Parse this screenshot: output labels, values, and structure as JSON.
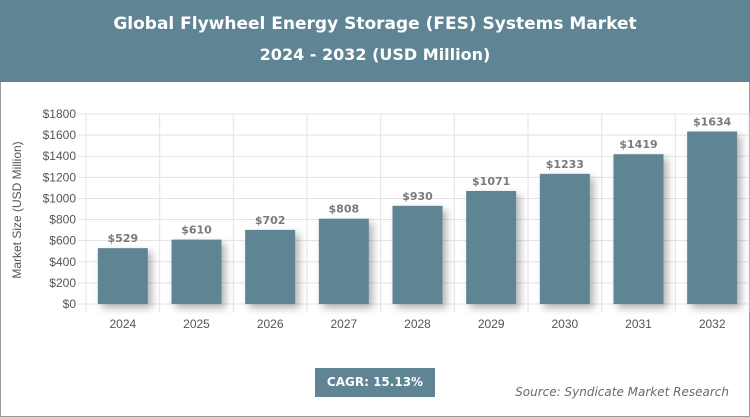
{
  "header": {
    "title": "Global Flywheel Energy Storage (FES) Systems Market",
    "subtitle": "2024 - 2032 (USD Million)"
  },
  "chart_data": {
    "type": "bar",
    "title": "Global Flywheel Energy Storage (FES) Systems Market",
    "subtitle": "2024 - 2032 (USD Million)",
    "categories": [
      "2024",
      "2025",
      "2026",
      "2027",
      "2028",
      "2029",
      "2030",
      "2031",
      "2032"
    ],
    "values": [
      529,
      610,
      702,
      808,
      930,
      1071,
      1233,
      1419,
      1634
    ],
    "data_labels": [
      "$529",
      "$610",
      "$702",
      "$808",
      "$930",
      "$1071",
      "$1233",
      "$1419",
      "$1634"
    ],
    "ylabel": "Market Size (USD Million)",
    "xlabel": "",
    "ylim": [
      0,
      1800
    ],
    "yticks": [
      "$0",
      "$200",
      "$400",
      "$600",
      "$800",
      "$1000",
      "$1200",
      "$1400",
      "$1600",
      "$1800"
    ],
    "grid": true,
    "bar_color": "#5f8494"
  },
  "footer": {
    "cagr": "CAGR: 15.13%",
    "source": "Source: Syndicate Market Research"
  }
}
